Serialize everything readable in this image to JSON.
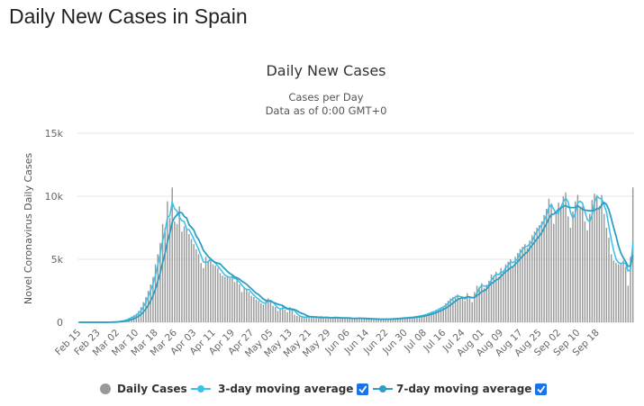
{
  "page": {
    "heading": "Daily New Cases in Spain"
  },
  "colors": {
    "bars": "#999999",
    "ma3": "#3cc2ea",
    "ma7": "#2e9ec2",
    "checkbox": "#1a73e8"
  },
  "chart_data": {
    "type": "bar",
    "title": "Daily New Cases",
    "subtitle": "Cases per Day",
    "subtitle2": "Data as of 0:00 GMT+0",
    "ylabel": "Novel Coronavirus Daily Cases",
    "ylim": [
      0,
      15000
    ],
    "yticks": [
      {
        "value": 0,
        "label": "0"
      },
      {
        "value": 5000,
        "label": "5k"
      },
      {
        "value": 10000,
        "label": "10k"
      },
      {
        "value": 15000,
        "label": "15k"
      }
    ],
    "grid": true,
    "legend_position": "bottom",
    "x_start": "Feb 15",
    "x_end": "Sep 22",
    "xtick_labels": [
      "Feb 15",
      "Feb 23",
      "Mar 02",
      "Mar 10",
      "Mar 18",
      "Mar 26",
      "Apr 03",
      "Apr 11",
      "Apr 19",
      "Apr 27",
      "May 05",
      "May 13",
      "May 21",
      "May 29",
      "Jun 06",
      "Jun 14",
      "Jun 22",
      "Jun 30",
      "Jul 08",
      "Jul 16",
      "Jul 24",
      "Aug 01",
      "Aug 09",
      "Aug 17",
      "Aug 25",
      "Sep 02",
      "Sep 10",
      "Sep 18"
    ],
    "series": [
      {
        "name": "Daily Cases",
        "kind": "bar",
        "values": [
          0,
          0,
          0,
          0,
          0,
          0,
          0,
          0,
          0,
          0,
          2,
          5,
          10,
          20,
          30,
          40,
          60,
          90,
          130,
          170,
          250,
          350,
          450,
          560,
          680,
          900,
          1200,
          1600,
          2000,
          2500,
          3000,
          3600,
          4600,
          5400,
          6300,
          7800,
          7500,
          9600,
          8300,
          10700,
          8000,
          7800,
          9200,
          7200,
          7600,
          7400,
          7000,
          6600,
          6200,
          5800,
          5400,
          4700,
          4300,
          5200,
          4900,
          5000,
          4600,
          4500,
          4300,
          3900,
          3700,
          3600,
          3600,
          3500,
          3700,
          3200,
          3400,
          3000,
          2400,
          2800,
          2600,
          2400,
          2100,
          2000,
          1800,
          1700,
          1500,
          1400,
          1700,
          1900,
          1600,
          1300,
          1200,
          900,
          1100,
          1300,
          1000,
          800,
          1200,
          1000,
          600,
          500,
          450,
          400,
          350,
          500,
          450,
          400,
          450,
          350,
          300,
          400,
          380,
          420,
          350,
          300,
          400,
          380,
          350,
          320,
          300,
          350,
          330,
          300,
          280,
          300,
          350,
          320,
          300,
          280,
          250,
          230,
          270,
          260,
          250,
          240,
          220,
          260,
          250,
          270,
          280,
          290,
          300,
          320,
          330,
          350,
          370,
          380,
          400,
          420,
          450,
          480,
          520,
          560,
          620,
          680,
          760,
          830,
          900,
          1000,
          1100,
          1200,
          1300,
          1500,
          1700,
          1900,
          2000,
          2100,
          2200,
          1800,
          2000,
          1700,
          2300,
          2000,
          1600,
          2400,
          2900,
          2800,
          3100,
          2700,
          2900,
          3300,
          3800,
          3700,
          4000,
          3600,
          4300,
          4100,
          4600,
          4800,
          5000,
          4400,
          5200,
          5500,
          5800,
          6000,
          6200,
          5900,
          6500,
          6900,
          7200,
          7500,
          7700,
          8000,
          8500,
          9000,
          9800,
          9300,
          7800,
          8800,
          9500,
          9200,
          10000,
          10300,
          8400,
          7500,
          8800,
          9600,
          10100,
          9100,
          9200,
          8000,
          7300,
          8600,
          9700,
          10200,
          10100,
          9200,
          10100,
          8600,
          7500,
          6700,
          5400,
          4900,
          4700,
          4600,
          4700,
          4900,
          4400,
          2900,
          5200,
          10700
        ]
      },
      {
        "name": "3-day moving average",
        "kind": "line",
        "derived_from": "Daily Cases",
        "window": 3
      },
      {
        "name": "7-day moving average",
        "kind": "line",
        "derived_from": "Daily Cases",
        "window": 7
      }
    ]
  },
  "legend": {
    "daily_cases": "Daily Cases",
    "ma3": "3-day moving average",
    "ma7": "7-day moving average"
  }
}
